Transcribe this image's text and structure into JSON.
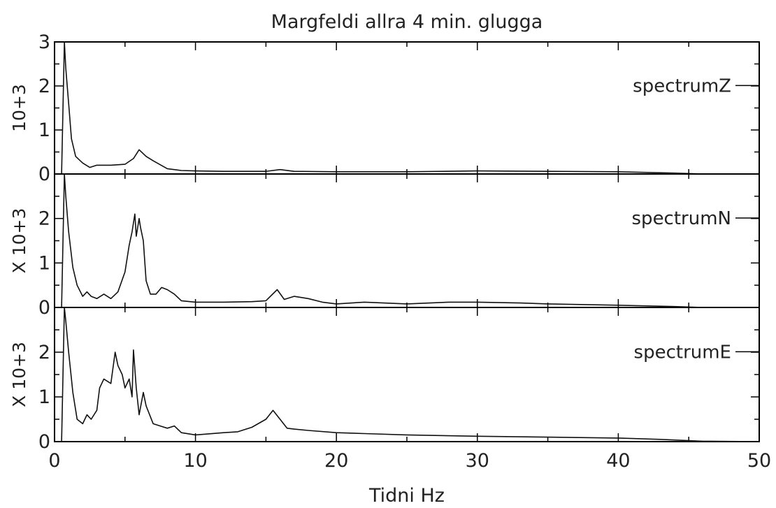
{
  "chart_data": {
    "type": "line",
    "title": "Margfeldi allra 4 min. glugga",
    "xlabel": "Tidni Hz",
    "xlim": [
      0,
      50
    ],
    "x_ticks": [
      "0",
      "10",
      "20",
      "30",
      "40",
      "50"
    ],
    "panels": [
      {
        "name": "spectrumZ",
        "ylabel": "10+3",
        "ylim": [
          0,
          3
        ],
        "y_ticks": [
          "0",
          "1",
          "2",
          "3"
        ],
        "x": [
          0.5,
          0.7,
          0.8,
          1.0,
          1.2,
          1.5,
          2.0,
          2.5,
          3.0,
          4.0,
          5.0,
          5.6,
          6.0,
          6.5,
          7.0,
          8.0,
          9.0,
          10,
          12,
          15,
          16,
          17,
          20,
          25,
          30,
          35,
          40,
          44,
          46,
          50
        ],
        "y": [
          0.0,
          3.0,
          2.4,
          1.6,
          0.8,
          0.4,
          0.25,
          0.15,
          0.2,
          0.2,
          0.22,
          0.35,
          0.55,
          0.4,
          0.3,
          0.12,
          0.08,
          0.07,
          0.06,
          0.06,
          0.1,
          0.06,
          0.05,
          0.05,
          0.07,
          0.06,
          0.05,
          0.02,
          0.0,
          0.0
        ]
      },
      {
        "name": "spectrumN",
        "ylabel": "X 10+3",
        "ylim": [
          0,
          3
        ],
        "y_ticks": [
          "0",
          "1",
          "2"
        ],
        "x": [
          0.5,
          0.7,
          0.8,
          1.0,
          1.3,
          1.6,
          2.0,
          2.3,
          2.6,
          3.0,
          3.5,
          4.0,
          4.5,
          5.0,
          5.3,
          5.5,
          5.7,
          5.8,
          6.0,
          6.1,
          6.3,
          6.5,
          6.8,
          7.2,
          7.6,
          8.0,
          8.5,
          9.0,
          10,
          12,
          14,
          15,
          15.8,
          16.3,
          17,
          18,
          19,
          20,
          22,
          25,
          28,
          30,
          33,
          35,
          40,
          44,
          46,
          50
        ],
        "y": [
          0.0,
          3.0,
          2.5,
          1.7,
          0.9,
          0.5,
          0.25,
          0.35,
          0.25,
          0.2,
          0.3,
          0.2,
          0.35,
          0.8,
          1.4,
          1.7,
          2.1,
          1.6,
          2.0,
          1.8,
          1.5,
          0.6,
          0.3,
          0.3,
          0.45,
          0.4,
          0.3,
          0.15,
          0.12,
          0.12,
          0.13,
          0.15,
          0.4,
          0.18,
          0.25,
          0.2,
          0.12,
          0.08,
          0.12,
          0.08,
          0.12,
          0.12,
          0.1,
          0.08,
          0.05,
          0.02,
          0.0,
          0.0
        ]
      },
      {
        "name": "spectrumE",
        "ylabel": "X 10+3",
        "ylim": [
          0,
          3
        ],
        "y_ticks": [
          "0",
          "1",
          "2"
        ],
        "x": [
          0.5,
          0.7,
          0.8,
          1.0,
          1.3,
          1.6,
          2.0,
          2.3,
          2.6,
          3.0,
          3.2,
          3.5,
          4.0,
          4.3,
          4.5,
          4.8,
          5.0,
          5.3,
          5.5,
          5.6,
          5.8,
          6.0,
          6.3,
          6.5,
          7.0,
          7.5,
          8.0,
          8.5,
          9.0,
          10,
          12,
          13,
          14,
          15,
          15.5,
          16,
          16.5,
          17,
          18,
          20,
          22,
          25,
          30,
          35,
          40,
          43,
          46,
          50
        ],
        "y": [
          0.0,
          3.0,
          2.7,
          2.0,
          1.1,
          0.5,
          0.4,
          0.6,
          0.5,
          0.7,
          1.2,
          1.4,
          1.3,
          2.0,
          1.7,
          1.5,
          1.2,
          1.4,
          1.0,
          2.05,
          1.2,
          0.6,
          1.1,
          0.8,
          0.4,
          0.35,
          0.3,
          0.35,
          0.2,
          0.15,
          0.2,
          0.22,
          0.32,
          0.5,
          0.7,
          0.5,
          0.3,
          0.28,
          0.25,
          0.2,
          0.18,
          0.15,
          0.12,
          0.1,
          0.08,
          0.05,
          0.01,
          0.0
        ]
      }
    ]
  }
}
